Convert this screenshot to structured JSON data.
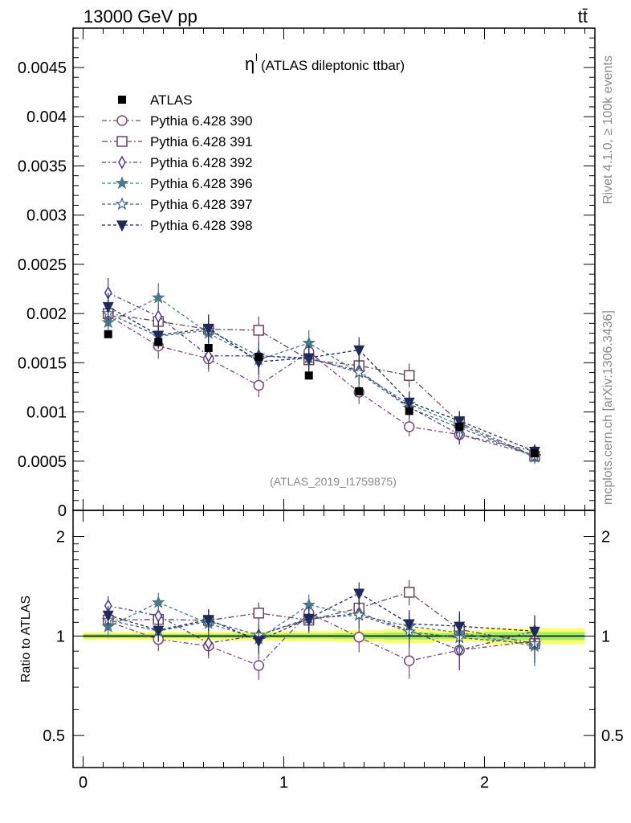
{
  "header": {
    "energy_label": "13000 GeV pp",
    "process_label": "tt̄",
    "side_label_rivet": "Rivet 4.1.0, ≥ 100k events",
    "side_label_mcplots": "mcplots.cern.ch [arXiv:1306.3436]"
  },
  "chart_data": {
    "type": "line",
    "title_symbol": "η",
    "title_superscript": "l",
    "title_text": "(ATLAS dileptonic ttbar)",
    "analysis_label": "(ATLAS_2019_I1759875)",
    "xlim": [
      -0.05,
      2.55
    ],
    "ylim": [
      0,
      0.0049
    ],
    "x": [
      0.125,
      0.375,
      0.625,
      0.875,
      1.125,
      1.375,
      1.625,
      1.875,
      2.25
    ],
    "x_tick_labels": [
      "0",
      "1",
      "2"
    ],
    "y_tick_labels": [
      "0",
      "0.0005",
      "0.001",
      "0.0015",
      "0.002",
      "0.0025",
      "0.003",
      "0.0035",
      "0.004",
      "0.0045"
    ],
    "ratio_ylabel": "Ratio to ATLAS",
    "ratio_ylim": [
      0.4,
      2.4
    ],
    "ratio_tick_labels": [
      "0.5",
      "1",
      "2"
    ],
    "data": {
      "name": "ATLAS",
      "values": [
        0.00179,
        0.00171,
        0.00165,
        0.00156,
        0.00137,
        0.00121,
        0.00101,
        0.00085,
        0.00058
      ],
      "errors": [
        3e-05,
        3e-05,
        3e-05,
        3e-05,
        3e-05,
        3e-05,
        3e-05,
        2e-05,
        2e-05
      ]
    },
    "series": [
      {
        "name": "Pythia 6.428 390",
        "marker": "circle-open",
        "color": "#7b4a7b",
        "dash": "6,3,2,3",
        "values": [
          0.00198,
          0.00167,
          0.00154,
          0.00127,
          0.00161,
          0.0012,
          0.00085,
          0.00077,
          0.00056
        ],
        "errors": [
          0.00014,
          0.00013,
          0.00013,
          0.00012,
          0.00013,
          0.00012,
          0.0001,
          0.0001,
          7e-05
        ]
      },
      {
        "name": "Pythia 6.428 391",
        "marker": "square-open",
        "color": "#6e4458",
        "dash": "7,3,2,3",
        "values": [
          0.002,
          0.00192,
          0.00184,
          0.00183,
          0.00153,
          0.00147,
          0.00137,
          0.00089,
          0.00055
        ],
        "errors": [
          0.00014,
          0.00014,
          0.00014,
          0.00014,
          0.00013,
          0.00012,
          0.00012,
          0.0001,
          7e-05
        ]
      },
      {
        "name": "Pythia 6.428 392",
        "marker": "diamond-open",
        "color": "#4a3a8c",
        "dash": "5,3,2,3",
        "values": [
          0.00221,
          0.00197,
          0.00157,
          0.00157,
          0.00154,
          0.00142,
          0.00105,
          0.00077,
          0.0006
        ],
        "errors": [
          0.00015,
          0.00014,
          0.00013,
          0.00013,
          0.00013,
          0.00012,
          0.00011,
          0.0001,
          7e-05
        ]
      },
      {
        "name": "Pythia 6.428 396",
        "marker": "star-filled",
        "color": "#4a7a8a",
        "dash": "4,3",
        "values": [
          0.00191,
          0.00216,
          0.0018,
          0.00153,
          0.0017,
          0.0014,
          0.00108,
          0.00087,
          0.00054
        ],
        "errors": [
          0.00014,
          0.00015,
          0.00014,
          0.00013,
          0.00013,
          0.00012,
          0.00011,
          0.0001,
          7e-05
        ]
      },
      {
        "name": "Pythia 6.428 397",
        "marker": "star-open",
        "color": "#3f5f7f",
        "dash": "4,3",
        "values": [
          0.002,
          0.00177,
          0.00183,
          0.00157,
          0.00155,
          0.0014,
          0.00104,
          0.00084,
          0.00055
        ],
        "errors": [
          0.00014,
          0.00013,
          0.00014,
          0.00013,
          0.00013,
          0.00012,
          0.00011,
          0.0001,
          7e-05
        ]
      },
      {
        "name": "Pythia 6.428 398",
        "marker": "triangle-down-filled",
        "color": "#1e2a5a",
        "dash": "4,3",
        "values": [
          0.00207,
          0.00178,
          0.00185,
          0.00151,
          0.00155,
          0.00163,
          0.0011,
          0.00091,
          0.0006
        ],
        "errors": [
          0.00014,
          0.00013,
          0.00014,
          0.00013,
          0.00013,
          0.00013,
          0.00011,
          0.0001,
          7e-05
        ]
      }
    ],
    "band_colors": {
      "stat": "#ffff66",
      "total": "#99ee66"
    }
  }
}
